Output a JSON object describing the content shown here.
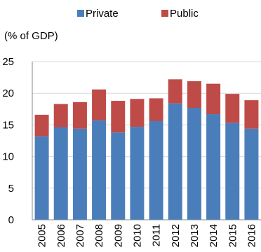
{
  "chart_data": {
    "type": "bar",
    "stacked": true,
    "title": "",
    "unit_label": "(% of GDP)",
    "xlabel": "",
    "ylabel": "",
    "categories": [
      "2005",
      "2006",
      "2007",
      "2008",
      "2009",
      "2010",
      "2011",
      "2012",
      "2013",
      "2014",
      "2015",
      "2016"
    ],
    "series": [
      {
        "name": "Private",
        "color": "#4a7ebb",
        "values": [
          13.2,
          14.6,
          14.4,
          15.7,
          13.8,
          14.7,
          15.6,
          18.4,
          17.7,
          16.7,
          15.3,
          14.4
        ]
      },
      {
        "name": "Public",
        "color": "#be4b48",
        "values": [
          3.4,
          3.7,
          4.2,
          4.9,
          5.0,
          4.4,
          3.6,
          3.8,
          4.2,
          4.8,
          4.6,
          4.5
        ]
      }
    ],
    "ylim": [
      0,
      25
    ],
    "yticks": [
      0,
      5,
      10,
      15,
      20,
      25
    ],
    "grid": true,
    "legend_position": "top-center"
  }
}
